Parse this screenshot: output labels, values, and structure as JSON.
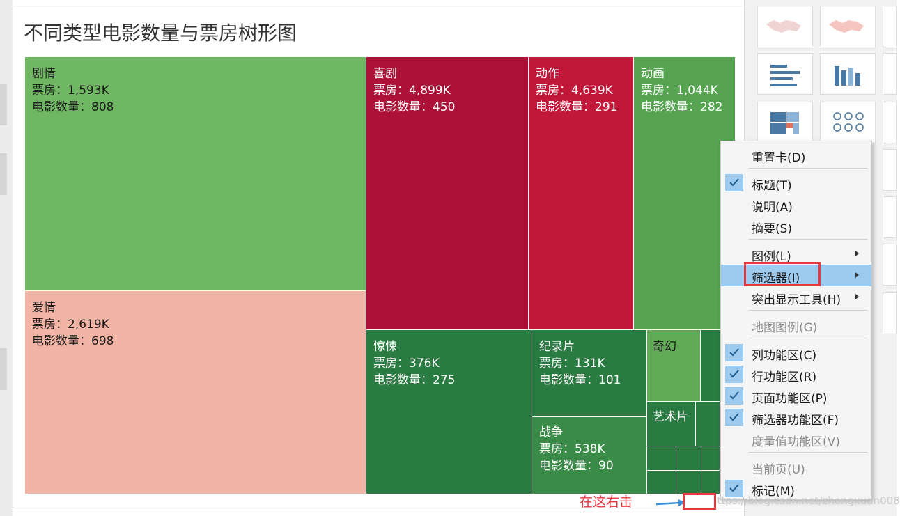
{
  "title": "不同类型电影数量与票房树形图",
  "chart_data": {
    "type": "treemap",
    "metric_prefix_box_office": "票房：",
    "metric_prefix_count": "电影数量：",
    "cells": [
      {
        "genre": "剧情",
        "box_office": "1,593K",
        "count": "808",
        "color": "#6fb763"
      },
      {
        "genre": "爱情",
        "box_office": "2,619K",
        "count": "698",
        "color": "#f2b4a4"
      },
      {
        "genre": "喜剧",
        "box_office": "4,899K",
        "count": "450",
        "color": "#ad1137"
      },
      {
        "genre": "动作",
        "box_office": "4,639K",
        "count": "291",
        "color": "#c1183a"
      },
      {
        "genre": "动画",
        "box_office": "1,044K",
        "count": "282",
        "color": "#56a352"
      },
      {
        "genre": "惊悚",
        "box_office": "376K",
        "count": "275",
        "color": "#2a7b41"
      },
      {
        "genre": "纪录片",
        "box_office": "131K",
        "count": "101",
        "color": "#2a7b41"
      },
      {
        "genre": "战争",
        "box_office": "538K",
        "count": "90",
        "color": "#3a8b48"
      },
      {
        "genre": "奇幻",
        "color": "#62aa58"
      },
      {
        "genre": "艺术片",
        "color": "#2a7b41"
      }
    ]
  },
  "context_menu": {
    "items": [
      {
        "label": "重置卡(D)",
        "checked": false,
        "submenu": false,
        "disabled": false
      },
      {
        "label": "标题(T)",
        "checked": true,
        "submenu": false,
        "disabled": false
      },
      {
        "label": "说明(A)",
        "checked": false,
        "submenu": false,
        "disabled": false
      },
      {
        "label": "摘要(S)",
        "checked": false,
        "submenu": false,
        "disabled": false
      },
      {
        "label": "图例(L)",
        "checked": false,
        "submenu": true,
        "disabled": false
      },
      {
        "label": "筛选器(I)",
        "checked": false,
        "submenu": true,
        "disabled": false,
        "highlighted": true
      },
      {
        "label": "突出显示工具(H)",
        "checked": false,
        "submenu": true,
        "disabled": false
      },
      {
        "label": "地图图例(G)",
        "checked": false,
        "submenu": false,
        "disabled": true
      },
      {
        "label": "列功能区(C)",
        "checked": true,
        "submenu": false,
        "disabled": false
      },
      {
        "label": "行功能区(R)",
        "checked": true,
        "submenu": false,
        "disabled": false
      },
      {
        "label": "页面功能区(P)",
        "checked": true,
        "submenu": false,
        "disabled": false
      },
      {
        "label": "筛选器功能区(F)",
        "checked": true,
        "submenu": false,
        "disabled": false
      },
      {
        "label": "度量值功能区(V)",
        "checked": false,
        "submenu": false,
        "disabled": true
      },
      {
        "label": "当前页(U)",
        "checked": false,
        "submenu": false,
        "disabled": true
      },
      {
        "label": "标记(M)",
        "checked": true,
        "submenu": false,
        "disabled": false
      }
    ]
  },
  "annotation": {
    "text": "在这右击",
    "color": "#e8383d"
  },
  "watermark": "https://blog.csdn.net/zhongxuan008",
  "show_me_panel": {
    "thumbnails": [
      "filled-map-icon",
      "symbol-map-icon",
      "horizontal-bar-icon",
      "stacked-bar-icon",
      "treemap-icon",
      "circle-view-icon"
    ]
  }
}
